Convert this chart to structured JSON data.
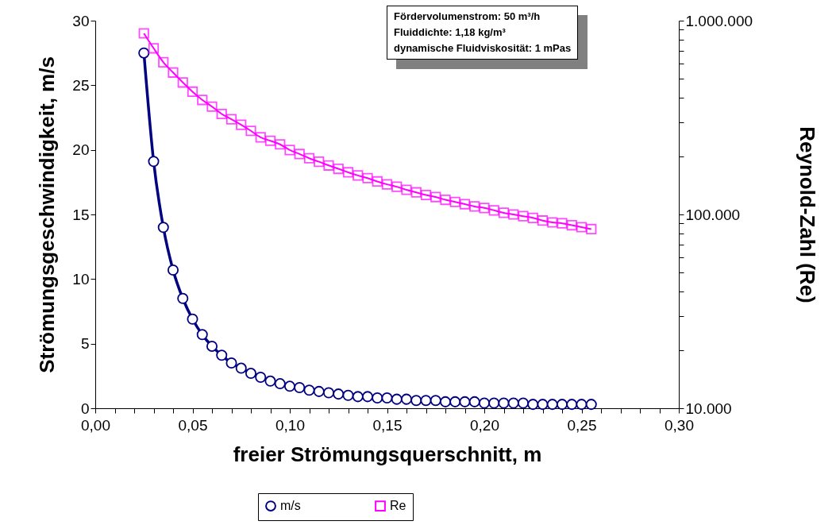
{
  "chart_data": {
    "type": "line",
    "xlabel": "freier Strömungsquerschnitt, m",
    "ylabel": "Strömungsgeschwindigkeit, m/s",
    "y2label": "Reynold-Zahl (Re)",
    "annotations": [
      "Fördervolumenstrom: 50 m³/h",
      "Fluiddichte: 1,18 kg/m³",
      "dynamische Fluidviskosität: 1 mPas"
    ],
    "x": [
      0.025,
      0.03,
      0.035,
      0.04,
      0.045,
      0.05,
      0.055,
      0.06,
      0.065,
      0.07,
      0.075,
      0.08,
      0.085,
      0.09,
      0.095,
      0.1,
      0.105,
      0.11,
      0.115,
      0.12,
      0.125,
      0.13,
      0.135,
      0.14,
      0.145,
      0.15,
      0.155,
      0.16,
      0.165,
      0.17,
      0.175,
      0.18,
      0.185,
      0.19,
      0.195,
      0.2,
      0.205,
      0.21,
      0.215,
      0.22,
      0.225,
      0.23,
      0.235,
      0.24,
      0.245,
      0.25,
      0.255
    ],
    "series": [
      {
        "name": "m/s",
        "color": "#000080",
        "marker": "circle",
        "values": [
          27.5,
          19.1,
          14.0,
          10.7,
          8.5,
          6.9,
          5.7,
          4.8,
          4.1,
          3.5,
          3.1,
          2.7,
          2.4,
          2.1,
          1.9,
          1.7,
          1.6,
          1.4,
          1.3,
          1.2,
          1.1,
          1.0,
          0.9,
          0.9,
          0.8,
          0.8,
          0.7,
          0.7,
          0.6,
          0.6,
          0.6,
          0.5,
          0.5,
          0.5,
          0.5,
          0.4,
          0.4,
          0.4,
          0.4,
          0.4,
          0.3,
          0.3,
          0.3,
          0.3,
          0.3,
          0.3,
          0.3
        ]
      },
      {
        "name": "Re",
        "color": "#ff00ff",
        "marker": "square",
        "axis": "y2",
        "values": [
          860000,
          720000,
          610000,
          540000,
          480000,
          430000,
          390000,
          360000,
          330000,
          310000,
          290000,
          270000,
          250000,
          240000,
          230000,
          215000,
          205000,
          195000,
          187000,
          179000,
          172000,
          165000,
          159000,
          154000,
          148000,
          143000,
          139000,
          134000,
          130000,
          126000,
          123000,
          119000,
          116000,
          113000,
          110000,
          108000,
          105000,
          102000,
          100000,
          98000,
          96000,
          93000,
          91000,
          90000,
          88000,
          86000,
          84000
        ]
      }
    ],
    "xlim": [
      0,
      0.3
    ],
    "xticks": [
      {
        "value": 0,
        "label": "0,00"
      },
      {
        "value": 0.01,
        "label": null
      },
      {
        "value": 0.02,
        "label": null
      },
      {
        "value": 0.03,
        "label": null
      },
      {
        "value": 0.04,
        "label": null
      },
      {
        "value": 0.05,
        "label": "0,05"
      },
      {
        "value": 0.06,
        "label": null
      },
      {
        "value": 0.07,
        "label": null
      },
      {
        "value": 0.08,
        "label": null
      },
      {
        "value": 0.09,
        "label": null
      },
      {
        "value": 0.1,
        "label": "0,10"
      },
      {
        "value": 0.11,
        "label": null
      },
      {
        "value": 0.12,
        "label": null
      },
      {
        "value": 0.13,
        "label": null
      },
      {
        "value": 0.14,
        "label": null
      },
      {
        "value": 0.15,
        "label": "0,15"
      },
      {
        "value": 0.16,
        "label": null
      },
      {
        "value": 0.17,
        "label": null
      },
      {
        "value": 0.18,
        "label": null
      },
      {
        "value": 0.19,
        "label": null
      },
      {
        "value": 0.2,
        "label": "0,20"
      },
      {
        "value": 0.21,
        "label": null
      },
      {
        "value": 0.22,
        "label": null
      },
      {
        "value": 0.23,
        "label": null
      },
      {
        "value": 0.24,
        "label": null
      },
      {
        "value": 0.25,
        "label": "0,25"
      },
      {
        "value": 0.26,
        "label": null
      },
      {
        "value": 0.27,
        "label": null
      },
      {
        "value": 0.28,
        "label": null
      },
      {
        "value": 0.29,
        "label": null
      },
      {
        "value": 0.3,
        "label": "0,30"
      }
    ],
    "ylim": [
      0,
      30
    ],
    "yticks": [
      0,
      5,
      10,
      15,
      20,
      25,
      30
    ],
    "y2lim": [
      10000,
      1000000
    ],
    "y2ticks": [
      {
        "value": 10000,
        "label": "10.000"
      },
      {
        "value": 20000,
        "label": null
      },
      {
        "value": 30000,
        "label": null
      },
      {
        "value": 40000,
        "label": null
      },
      {
        "value": 50000,
        "label": null
      },
      {
        "value": 60000,
        "label": null
      },
      {
        "value": 70000,
        "label": null
      },
      {
        "value": 80000,
        "label": null
      },
      {
        "value": 90000,
        "label": null
      },
      {
        "value": 100000,
        "label": "100.000"
      },
      {
        "value": 200000,
        "label": null
      },
      {
        "value": 300000,
        "label": null
      },
      {
        "value": 400000,
        "label": null
      },
      {
        "value": 500000,
        "label": null
      },
      {
        "value": 600000,
        "label": null
      },
      {
        "value": 700000,
        "label": null
      },
      {
        "value": 800000,
        "label": null
      },
      {
        "value": 900000,
        "label": null
      },
      {
        "value": 1000000,
        "label": "1.000.000"
      }
    ],
    "log": "y2",
    "grid": false,
    "legend": "bottom"
  }
}
